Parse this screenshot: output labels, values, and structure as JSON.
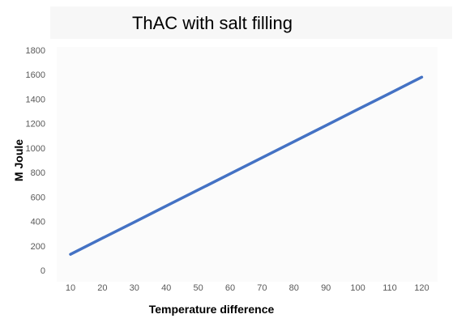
{
  "chart_data": {
    "type": "line",
    "title": "ThAC with salt filling",
    "xlabel": "Temperature difference",
    "ylabel": "M Joule",
    "x": [
      10,
      20,
      30,
      40,
      50,
      60,
      70,
      80,
      90,
      100,
      110,
      120
    ],
    "series": [
      {
        "values": [
          131,
          263,
          394,
          526,
          657,
          789,
          920,
          1052,
          1183,
          1315,
          1446,
          1578
        ],
        "color": "#4472C4"
      }
    ],
    "xticks": [
      "10",
      "20",
      "30",
      "40",
      "50",
      "60",
      "70",
      "80",
      "90",
      "100",
      "110",
      "120"
    ],
    "yticks": [
      "0",
      "200",
      "400",
      "600",
      "800",
      "1000",
      "1200",
      "1400",
      "1600",
      "1800"
    ],
    "ylim": [
      0,
      1800
    ],
    "grid": false,
    "legend": "none",
    "colors": {
      "line": "#4472C4",
      "tick_text": "#595959",
      "title_text": "#000000"
    }
  }
}
